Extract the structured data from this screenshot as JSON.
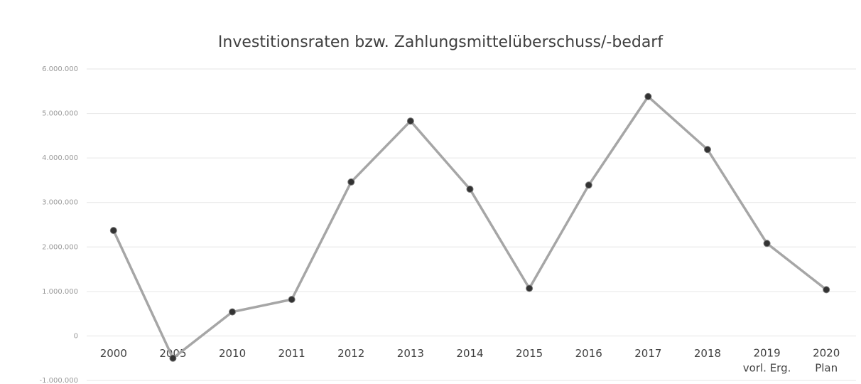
{
  "chart_data": {
    "type": "line",
    "title": "Investitionsraten bzw. Zahlungsmittelüberschuss/-bedarf",
    "categories": [
      "2000",
      "2005",
      "2010",
      "2011",
      "2012",
      "2013",
      "2014",
      "2015",
      "2016",
      "2017",
      "2018",
      "2019\nvorl. Erg.",
      "2020\nPlan"
    ],
    "series": [
      {
        "name": "Investitionsraten",
        "color": "#a6a6a6",
        "values": [
          2370000,
          -500000,
          540000,
          820000,
          3460000,
          4830000,
          3300000,
          1070000,
          3390000,
          5380000,
          4190000,
          2080000,
          1040000
        ]
      }
    ],
    "ylim": [
      -1000000,
      6000000
    ],
    "yticks": [
      {
        "value": -1000000,
        "label": "-1.000.000"
      },
      0,
      {
        "value": 1000000,
        "label": "1.000.000"
      },
      {
        "value": 2000000,
        "label": "2.000.000"
      },
      {
        "value": 3000000,
        "label": "3.000.000"
      },
      {
        "value": 4000000,
        "label": "4.000.000"
      },
      {
        "value": 5000000,
        "label": "5.000.000"
      },
      {
        "value": 6000000,
        "label": "6.000.000"
      }
    ],
    "grid": true
  }
}
